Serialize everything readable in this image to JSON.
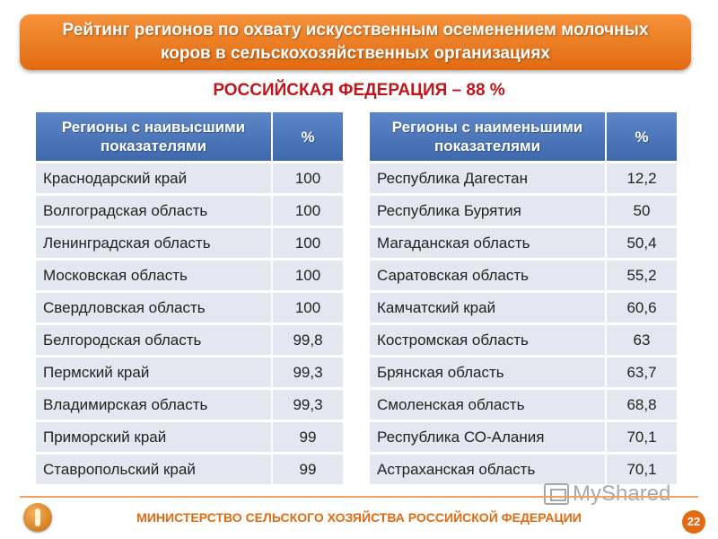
{
  "title": {
    "line1": "Рейтинг регионов по охвату искусственным осеменением молочных",
    "line2": "коров в сельскохозяйственных организациях"
  },
  "subtitle": "РОССИЙСКАЯ ФЕДЕРАЦИЯ – 88 %",
  "highest": {
    "header_region": "Регионы с наивысшими показателями",
    "header_value": "%",
    "rows": [
      {
        "region": "Краснодарский край",
        "value": "100"
      },
      {
        "region": "Волгоградская область",
        "value": "100"
      },
      {
        "region": "Ленинградская область",
        "value": "100"
      },
      {
        "region": "Московская область",
        "value": "100"
      },
      {
        "region": "Свердловская область",
        "value": "100"
      },
      {
        "region": "Белгородская область",
        "value": "99,8"
      },
      {
        "region": "Пермский край",
        "value": "99,3"
      },
      {
        "region": "Владимирская область",
        "value": "99,3"
      },
      {
        "region": "Приморский край",
        "value": "99"
      },
      {
        "region": "Ставропольский край",
        "value": "99"
      }
    ]
  },
  "lowest": {
    "header_region": "Регионы с наименьшими показателями",
    "header_value": "%",
    "rows": [
      {
        "region": "Республика Дагестан",
        "value": "12,2"
      },
      {
        "region": "Республика Бурятия",
        "value": "50"
      },
      {
        "region": "Магаданская область",
        "value": "50,4"
      },
      {
        "region": "Саратовская область",
        "value": "55,2"
      },
      {
        "region": "Камчатский край",
        "value": "60,6"
      },
      {
        "region": "Костромская область",
        "value": "63"
      },
      {
        "region": "Брянская область",
        "value": "63,7"
      },
      {
        "region": "Смоленская область",
        "value": "68,8"
      },
      {
        "region": "Республика СО-Алания",
        "value": "70,1"
      },
      {
        "region": "Астраханская область",
        "value": "70,1"
      }
    ]
  },
  "footer": {
    "ministry": "МИНИСТЕРСТВО СЕЛЬСКОГО ХОЗЯЙСТВА РОССИЙСКОЙ ФЕДЕРАЦИИ",
    "page_number": "22",
    "watermark": "MyShared"
  },
  "colors": {
    "banner": "#e97a22",
    "subtitle": "#c0161a",
    "table_header": "#4a74b8",
    "table_row": "#e4e7ef",
    "footer_text": "#e36a10"
  },
  "icons": {
    "emblem": "ministry-emblem-icon",
    "watermark": "myshared-logo-icon"
  }
}
